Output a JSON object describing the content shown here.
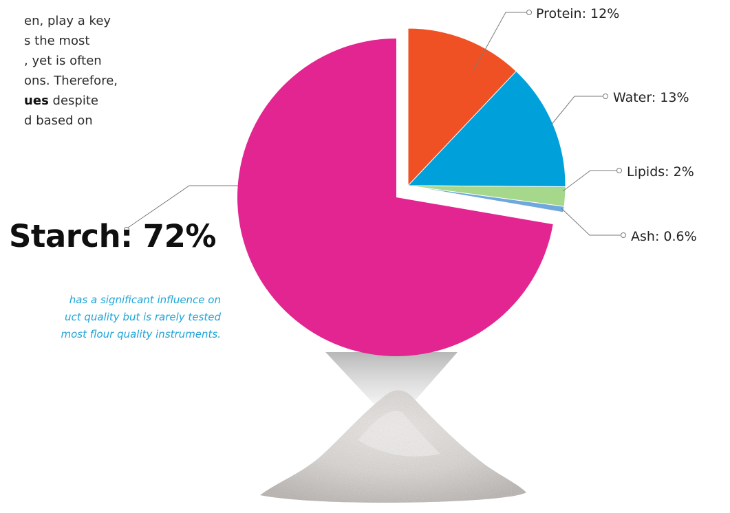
{
  "intro": {
    "lines": [
      "en, play a key",
      "s the most",
      ", yet is often",
      "ons. Therefore,",
      "ues despite",
      "d based on"
    ],
    "bold_line_index": 4,
    "bold_text": "ues",
    "bold_rest": " despite"
  },
  "starch_callout": {
    "heading": "Starch: 72%",
    "note_lines": [
      "has a significant influence on",
      "uct quality but is rarely tested",
      "most flour quality instruments."
    ],
    "note_color": "#1da4d8"
  },
  "chart_data": {
    "type": "pie",
    "start_angle_deg": 0,
    "direction": "clockwise",
    "exploded": [
      "Starch"
    ],
    "slices": [
      {
        "name": "Protein",
        "value": 12,
        "label": "Protein: 12%",
        "color": "#ef5124"
      },
      {
        "name": "Water",
        "value": 13,
        "label": "Water: 13%",
        "color": "#00a0db"
      },
      {
        "name": "Lipids",
        "value": 2,
        "label": "Lipids: 2%",
        "color": "#a6d88b"
      },
      {
        "name": "Ash",
        "value": 0.6,
        "label": "Ash: 0.6%",
        "color": "#6fa8dc"
      },
      {
        "name": "Starch",
        "value": 72,
        "label": "Starch: 72%",
        "color": "#e32591"
      }
    ]
  },
  "illustration": {
    "name": "flour-pile",
    "spotlight_color": "#9a9a9a"
  }
}
